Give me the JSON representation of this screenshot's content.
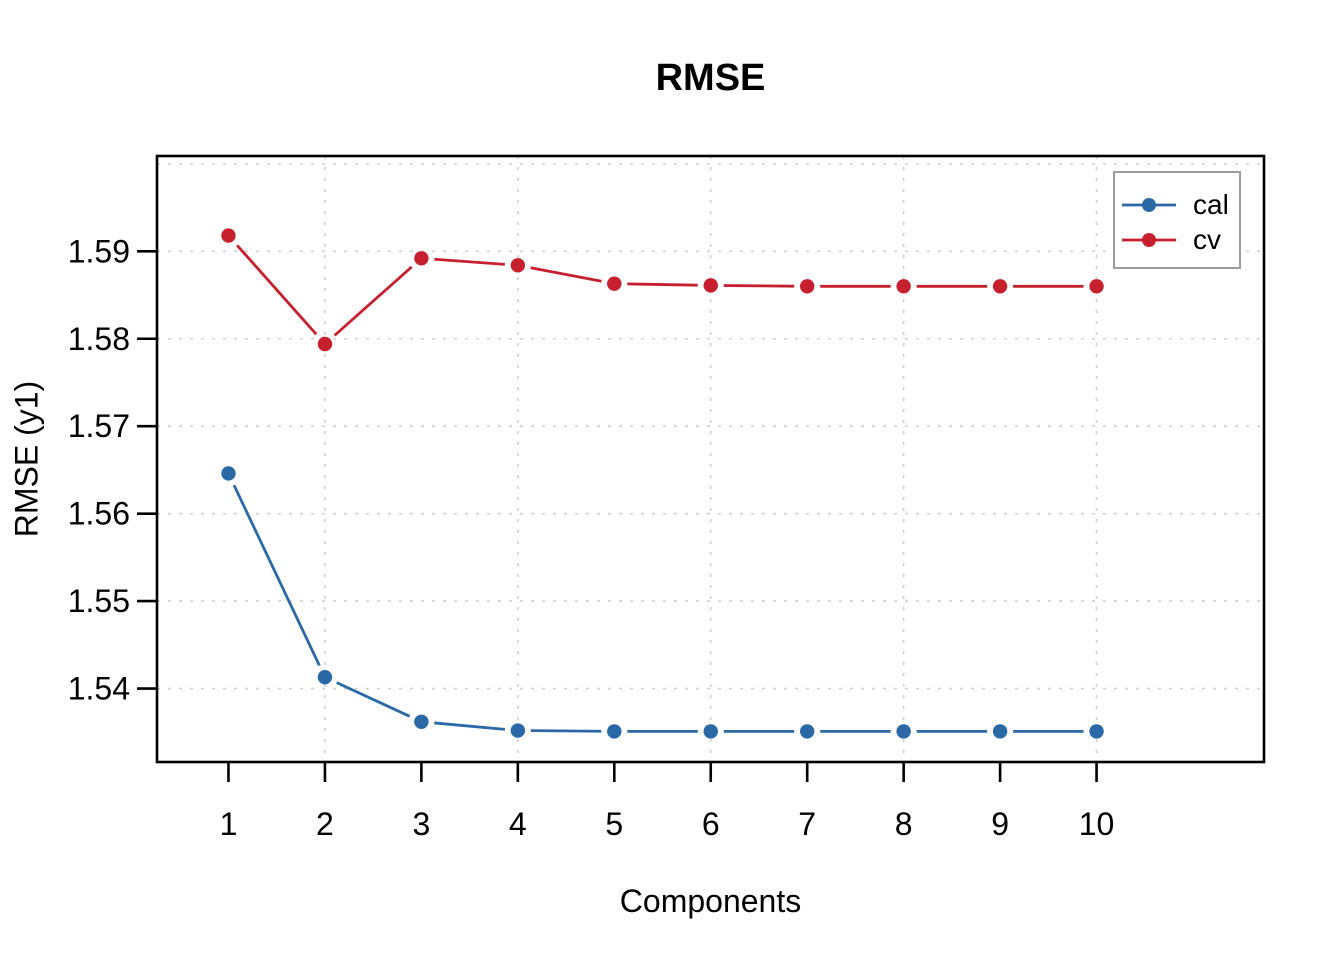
{
  "chart_data": {
    "type": "line",
    "title": "RMSE",
    "xlabel": "Components",
    "ylabel": "RMSE (y1)",
    "x": [
      1,
      2,
      3,
      4,
      5,
      6,
      7,
      8,
      9,
      10
    ],
    "series": [
      {
        "name": "cal",
        "color": "#2a69a5",
        "values": [
          1.5646,
          1.5413,
          1.5362,
          1.5352,
          1.5351,
          1.5351,
          1.5351,
          1.5351,
          1.5351,
          1.5351
        ]
      },
      {
        "name": "cv",
        "color": "#c6202f",
        "values": [
          1.5918,
          1.5794,
          1.5892,
          1.5884,
          1.5863,
          1.5861,
          1.586,
          1.586,
          1.586,
          1.586
        ]
      }
    ],
    "x_ticks": [
      {
        "value": 1,
        "label": "1"
      },
      {
        "value": 2,
        "label": "2"
      },
      {
        "value": 3,
        "label": "3"
      },
      {
        "value": 4,
        "label": "4"
      },
      {
        "value": 5,
        "label": "5"
      },
      {
        "value": 6,
        "label": "6"
      },
      {
        "value": 7,
        "label": "7"
      },
      {
        "value": 8,
        "label": "8"
      },
      {
        "value": 9,
        "label": "9"
      },
      {
        "value": 10,
        "label": "10"
      }
    ],
    "y_ticks": [
      {
        "value": 1.54,
        "label": "1.54"
      },
      {
        "value": 1.55,
        "label": "1.55"
      },
      {
        "value": 1.56,
        "label": "1.56"
      },
      {
        "value": 1.57,
        "label": "1.57"
      },
      {
        "value": 1.58,
        "label": "1.58"
      },
      {
        "value": 1.59,
        "label": "1.59"
      }
    ],
    "grid": {
      "on": true,
      "style": "dotted",
      "color": "#cfcfcf",
      "h_values": [
        1.54,
        1.55,
        1.56,
        1.57,
        1.58,
        1.59,
        1.6
      ],
      "v_values": [
        2,
        4,
        6,
        8,
        10
      ]
    },
    "xlim": [
      0.259,
      11.736
    ],
    "ylim": [
      1.5316,
      1.6009
    ],
    "legend_position": "topright",
    "marker": "filled-circle",
    "line_style": "segments-with-gaps"
  },
  "colors": {
    "background": "#ffffff",
    "axis": "#000000",
    "grid": "#cfcfcf",
    "legend_border": "#9c9c9c"
  }
}
